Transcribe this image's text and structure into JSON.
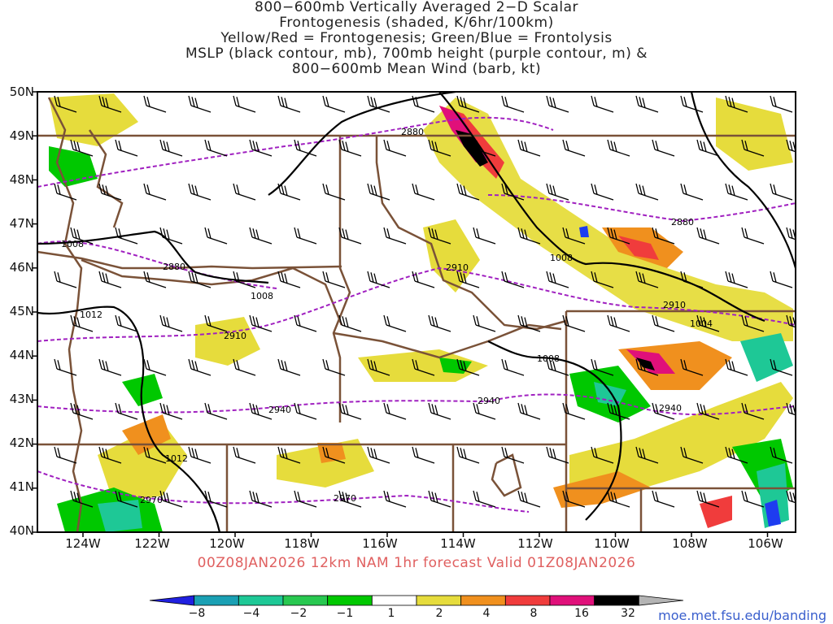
{
  "title": {
    "lines": [
      "800−600mb Vertically Averaged 2−D Scalar",
      "Frontogenesis (shaded, K/6hr/100km)",
      "Yellow/Red = Frontogenesis;  Green/Blue = Frontolysis",
      "MSLP (black contour, mb), 700mb height (purple contour, m) &",
      "800−600mb Mean Wind (barb, kt)"
    ]
  },
  "map": {
    "lat_labels": [
      "50N",
      "49N",
      "48N",
      "47N",
      "46N",
      "45N",
      "44N",
      "43N",
      "42N",
      "41N",
      "40N"
    ],
    "lon_labels": [
      "124W",
      "122W",
      "120W",
      "118W",
      "116W",
      "114W",
      "112W",
      "110W",
      "108W",
      "106W"
    ],
    "height_contour_labels": [
      "2880",
      "2880",
      "2880",
      "2910",
      "2910",
      "2910",
      "2940",
      "2940",
      "2940",
      "2970",
      "2970"
    ],
    "mslp_contour_labels": [
      "1008",
      "1008",
      "1008",
      "1008",
      "1004",
      "1012",
      "1012"
    ],
    "colors": {
      "height_contour": "#a020c0",
      "mslp_contour": "#000000",
      "borders": "#7a5238",
      "frontogenesis_weak": "#e6dc3c",
      "frontogenesis_moderate": "#f0901e",
      "frontogenesis_strong": "#f03c3c",
      "frontogenesis_intense": "#e0107a",
      "frontogenesis_extreme": "#000000",
      "frontolysis_weak": "#00c800",
      "frontolysis_moderate": "#1ec896",
      "frontolysis_strong": "#1e3cf0"
    }
  },
  "valid_time": "00Z08JAN2026  12km  NAM  1hr  forecast  Valid  01Z08JAN2026",
  "colorbar": {
    "labels": [
      "−8",
      "−4",
      "−2",
      "−1",
      "1",
      "2",
      "4",
      "8",
      "16",
      "32"
    ],
    "colors": [
      "#2020e0",
      "#1aa0b4",
      "#1ec896",
      "#28c850",
      "#00c800",
      "#ffffff",
      "#e6dc3c",
      "#f0901e",
      "#f03c3c",
      "#e0107a",
      "#000000",
      "#b4b4b4"
    ]
  },
  "source_url": "moe.met.fsu.edu/banding"
}
